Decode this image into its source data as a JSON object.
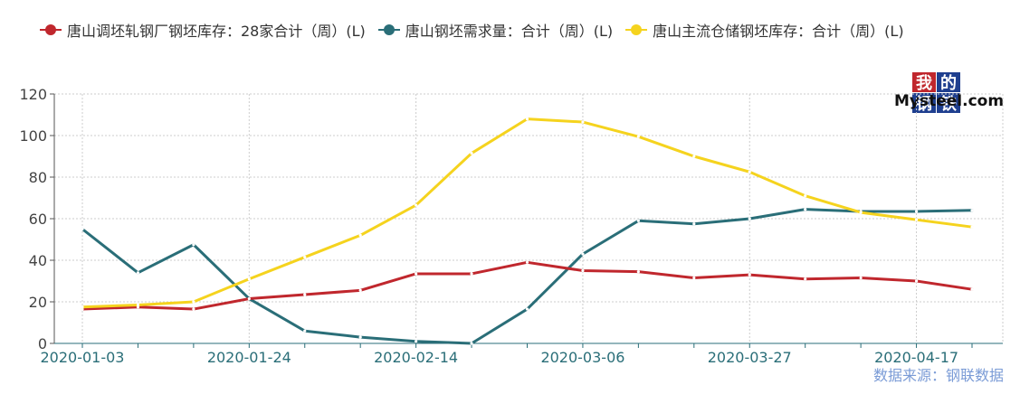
{
  "chart_data": {
    "type": "line",
    "x": [
      "2020-01-03",
      "2020-01-10",
      "2020-01-17",
      "2020-01-24",
      "2020-01-31",
      "2020-02-07",
      "2020-02-14",
      "2020-02-21",
      "2020-02-28",
      "2020-03-06",
      "2020-03-13",
      "2020-03-20",
      "2020-03-27",
      "2020-04-03",
      "2020-04-10",
      "2020-04-17",
      "2020-04-24"
    ],
    "x_tick_labels": [
      "2020-01-03",
      "2020-01-24",
      "2020-02-14",
      "2020-03-06",
      "2020-03-27",
      "2020-04-17"
    ],
    "ylim": [
      0,
      120
    ],
    "y_ticks": [
      0,
      20,
      40,
      60,
      80,
      100,
      120
    ],
    "grid": true,
    "legend_position": "top",
    "series": [
      {
        "name": "唐山调坯轧钢厂钢坯库存：28家合计（周）(L)",
        "color": "#c0272d",
        "values": [
          16.5,
          17.5,
          16.5,
          21.5,
          23.5,
          25.5,
          33.5,
          33.5,
          39,
          35,
          34.5,
          31.5,
          33,
          31,
          31.5,
          30,
          26
        ]
      },
      {
        "name": "唐山钢坯需求量：合计（周）(L)",
        "color": "#2a6e78",
        "values": [
          55,
          34,
          47.5,
          21.5,
          6,
          3,
          1,
          0,
          16.5,
          43,
          59,
          57.5,
          60,
          64.5,
          63.5,
          63.5,
          64
        ]
      },
      {
        "name": "唐山主流仓储钢坯库存：合计（周）(L)",
        "color": "#f5d31e",
        "values": [
          17.5,
          18.5,
          20,
          31,
          41.5,
          52,
          66.5,
          91.5,
          108,
          106.5,
          99.5,
          90,
          82.5,
          71,
          63,
          59.5,
          56
        ]
      }
    ]
  },
  "logo": {
    "chars": [
      "我",
      "的",
      "钢",
      "铁"
    ],
    "text": "Mysteel.com"
  },
  "source": "数据来源：钢联数据"
}
